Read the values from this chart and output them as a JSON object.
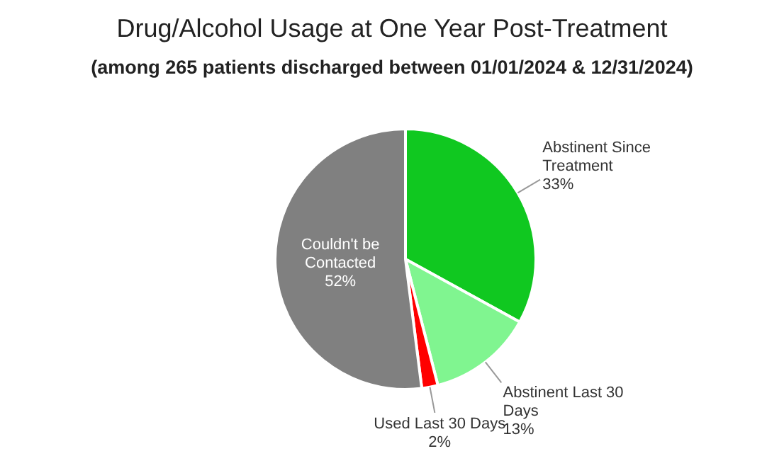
{
  "chart_data": {
    "type": "pie",
    "title": "Drug/Alcohol Usage at One Year Post-Treatment",
    "subtitle": "(among 265 patients discharged between 01/01/2024 & 12/31/2024)",
    "categories": [
      "Abstinent Since Treatment",
      "Abstinent Last 30 Days",
      "Used Last 30 Days",
      "Couldn't be Contacted"
    ],
    "values": [
      33,
      13,
      2,
      52
    ],
    "value_labels": [
      "33%",
      "13%",
      "2%",
      "52%"
    ],
    "colors": [
      "#10c820",
      "#80f590",
      "#ff0000",
      "#808080"
    ],
    "legend": false
  }
}
